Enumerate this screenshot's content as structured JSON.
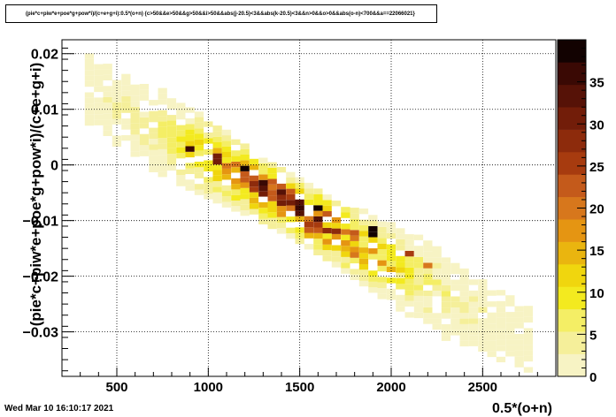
{
  "title": "(pie*c+piw*e+poe*g+pow*i)/(c+e+g+i):0.5*(o+n) {c>50&&e>50&&g>50&&i>50&&abs(j-20.5)<3&&abs(k-20.5)<3&&n>0&&o>0&&abs(o-n)<700&&a==22066021}",
  "timestamp": "Wed Mar 10 16:10:17 2021",
  "colors": {
    "palette": [
      "#f7f3c4",
      "#f5ef9a",
      "#f4ee65",
      "#f3ea1f",
      "#f0d60e",
      "#eab50f",
      "#e59512",
      "#d7771c",
      "#c45a1b",
      "#a73b0f",
      "#8d2b0c",
      "#721d09",
      "#561207",
      "#3a0904",
      "#120201"
    ]
  },
  "chart_data": {
    "type": "heatmap",
    "title": "(pie*c+piw*e+poe*g+pow*i)/(c+e+g+i):0.5*(o+n) {c>50&&e>50&&g>50&&i>50&&abs(j-20.5)<3&&abs(k-20.5)<3&&n>0&&o>0&&abs(o-n)<700&&a==22066021}",
    "xlabel": "0.5*(o+n)",
    "ylabel": "(pie*c+piw*e+poe*g+pow*i)/(c+e+g+i)",
    "xlim": [
      200,
      2900
    ],
    "ylim": [
      -0.038,
      0.0225
    ],
    "x_ticks": [
      500,
      1000,
      1500,
      2000,
      2500
    ],
    "y_ticks": [
      -0.03,
      -0.02,
      -0.01,
      0,
      0.01,
      0.02
    ],
    "x_tick_labels": [
      "500",
      "1000",
      "1500",
      "2000",
      "2500"
    ],
    "y_tick_labels": [
      "−0.03",
      "−0.02",
      "−0.01",
      "0",
      "0.01",
      "0.02"
    ],
    "z_range": [
      0,
      40
    ],
    "z_ticks": [
      0,
      5,
      10,
      15,
      20,
      25,
      30,
      35
    ],
    "z_tick_labels": [
      "0",
      "5",
      "10",
      "15",
      "20",
      "25",
      "30",
      "35"
    ],
    "grid": true,
    "bin_width_x": 50,
    "bin_width_y": 0.001,
    "band": {
      "x_start": 325,
      "x_end": 2775,
      "center_at_x300": 0.0135,
      "slope_per_unit_x": -1.89e-05
    },
    "peaks": [
      {
        "x": 875,
        "y": 0.002,
        "z": 36
      },
      {
        "x": 1175,
        "y": -0.001,
        "z": 40
      },
      {
        "x": 1275,
        "y": -0.0035,
        "z": 36
      },
      {
        "x": 1375,
        "y": -0.005,
        "z": 33
      },
      {
        "x": 1475,
        "y": -0.0075,
        "z": 32
      },
      {
        "x": 1575,
        "y": -0.0085,
        "z": 38
      },
      {
        "x": 1675,
        "y": -0.0095,
        "z": 36
      },
      {
        "x": 1875,
        "y": -0.0125,
        "z": 40
      },
      {
        "x": 2075,
        "y": -0.0165,
        "z": 25
      },
      {
        "x": 2175,
        "y": -0.0185,
        "z": 20
      },
      {
        "x": 1025,
        "y": 0.0005,
        "z": 30
      }
    ]
  }
}
